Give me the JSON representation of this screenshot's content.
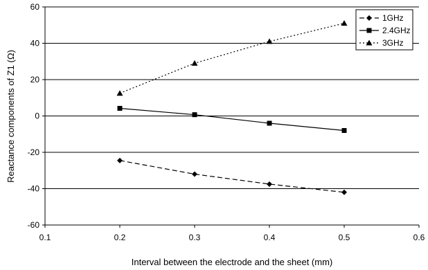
{
  "chart_data": {
    "type": "line",
    "title": "",
    "xlabel": "Interval between the electrode and the sheet (mm)",
    "ylabel": "Reactance components of Z1 (Ω)",
    "xlim": [
      0.1,
      0.6
    ],
    "ylim": [
      -60,
      60
    ],
    "x_ticks": [
      "0.1",
      "0.2",
      "0.3",
      "0.4",
      "0.5",
      "0.6"
    ],
    "y_ticks": [
      "60",
      "40",
      "20",
      "0",
      "-20",
      "-40",
      "-60"
    ],
    "grid": "horizontal",
    "legend_position": "top-right",
    "series": [
      {
        "name": "1GHz",
        "marker": "diamond",
        "line": "dashed",
        "x": [
          0.2,
          0.3,
          0.4,
          0.5
        ],
        "y": [
          -24.5,
          -32,
          -37.5,
          -42
        ]
      },
      {
        "name": "2.4GHz",
        "marker": "square",
        "line": "solid",
        "x": [
          0.2,
          0.3,
          0.4,
          0.5
        ],
        "y": [
          4.2,
          0.7,
          -4,
          -8
        ]
      },
      {
        "name": "3GHz",
        "marker": "triangle",
        "line": "dotted",
        "x": [
          0.2,
          0.3,
          0.4,
          0.5
        ],
        "y": [
          12.5,
          29,
          41,
          51
        ]
      }
    ]
  }
}
